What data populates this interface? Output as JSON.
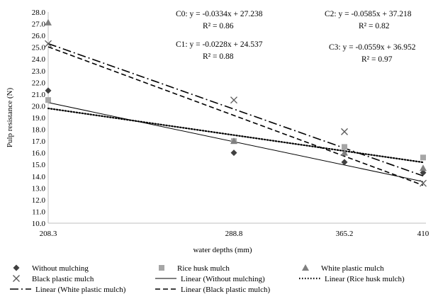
{
  "chart_data": {
    "type": "scatter",
    "xlabel": "water depths (mm)",
    "ylabel": "Pulp resistance (N)",
    "ylim": [
      10.0,
      28.0
    ],
    "ytick_step": 1.0,
    "categories": [
      "208.3",
      "288.8",
      "365.2",
      "410"
    ],
    "x": [
      208.3,
      288.8,
      365.2,
      410
    ],
    "grid": false,
    "legend_position": "bottom",
    "series": [
      {
        "name": "Without mulching",
        "marker": "diamond",
        "color": "#404040",
        "values": [
          21.3,
          16.0,
          15.2,
          14.3
        ]
      },
      {
        "name": "Rice husk mulch",
        "marker": "square",
        "color": "#a6a6a6",
        "values": [
          20.5,
          17.0,
          16.5,
          15.6
        ]
      },
      {
        "name": "White plastic mulch",
        "marker": "triangle",
        "color": "#808080",
        "values": [
          27.1,
          17.0,
          16.0,
          14.7
        ]
      },
      {
        "name": "Black plastic mulch",
        "marker": "cross",
        "color": "#595959",
        "values": [
          25.3,
          20.5,
          17.8,
          13.4
        ]
      }
    ],
    "trendlines": [
      {
        "name": "Linear (Without mulching)",
        "style": "solid",
        "slope": -0.0334,
        "intercept": 27.238
      },
      {
        "name": "Linear (Rice husk mulch)",
        "style": "dotted",
        "slope": -0.0228,
        "intercept": 24.537
      },
      {
        "name": "Linear (White plastic mulch)",
        "style": "dashdot",
        "slope": -0.0559,
        "intercept": 36.952
      },
      {
        "name": "Linear (Black plastic mulch)",
        "style": "dashed",
        "slope": -0.0585,
        "intercept": 37.218
      }
    ],
    "annotations": [
      {
        "id": "c0",
        "eq": "C0: y = -0.0334x + 27.238",
        "r2": "R² = 0.86"
      },
      {
        "id": "c1",
        "eq": "C1: y = -0.0228x + 24.537",
        "r2": "R² = 0.88"
      },
      {
        "id": "c2",
        "eq": "C2: y = -0.0585x + 37.218",
        "r2": "R² = 0.82"
      },
      {
        "id": "c3",
        "eq": "C3: y = -0.0559x + 36.952",
        "r2": "R² = 0.97"
      }
    ]
  }
}
